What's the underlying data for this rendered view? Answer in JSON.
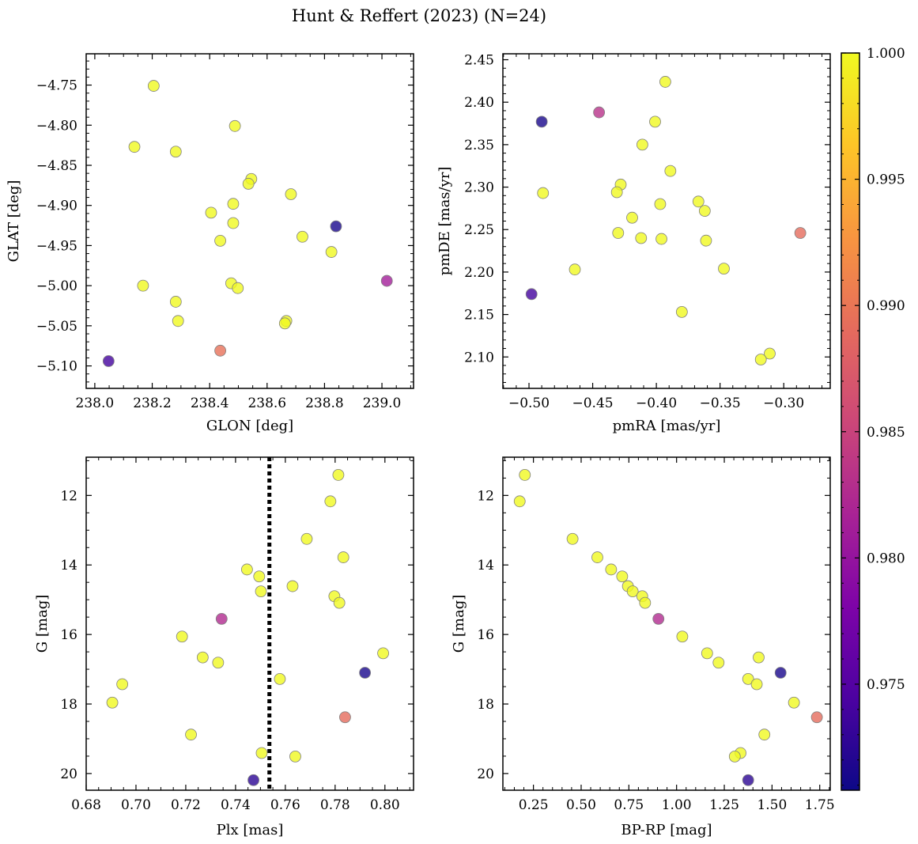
{
  "figure": {
    "title": "Hunt & Reffert (2023) (N=24)"
  },
  "colorbar": {
    "range": [
      0.9708,
      1.0
    ],
    "ticks": [
      0.975,
      0.98,
      0.985,
      0.99,
      0.995,
      1.0
    ],
    "tick_labels": [
      "0.975",
      "0.980",
      "0.985",
      "0.990",
      "0.995",
      "1.000"
    ],
    "colormap": "plasma"
  },
  "marker_style": {
    "edge_color": "#808080",
    "alpha": 0.8
  },
  "vline_color": "#000000",
  "chart_data": [
    {
      "type": "scatter",
      "xlabel": "GLON [deg]",
      "ylabel": "GLAT [deg]",
      "xlim": [
        237.97,
        239.11
      ],
      "ylim": [
        -5.128,
        -4.711
      ],
      "xticks": [
        238.0,
        238.2,
        238.4,
        238.6,
        238.8,
        239.0
      ],
      "xtick_labels": [
        "238.0",
        "238.2",
        "238.4",
        "238.6",
        "238.8",
        "239.0"
      ],
      "yticks": [
        -4.75,
        -4.8,
        -4.85,
        -4.9,
        -4.95,
        -5.0,
        -5.05,
        -5.1
      ],
      "ytick_labels": [
        "−4.75",
        "−4.80",
        "−4.85",
        "−4.90",
        "−4.95",
        "−5.00",
        "−5.05",
        "−5.10"
      ],
      "y_inverted": false,
      "points": [
        {
          "x": 238.205,
          "y": -4.751,
          "c": 1.0
        },
        {
          "x": 238.488,
          "y": -4.801,
          "c": 1.0
        },
        {
          "x": 238.138,
          "y": -4.827,
          "c": 1.0
        },
        {
          "x": 238.282,
          "y": -4.833,
          "c": 1.0
        },
        {
          "x": 238.545,
          "y": -4.867,
          "c": 1.0
        },
        {
          "x": 238.535,
          "y": -4.873,
          "c": 1.0
        },
        {
          "x": 238.683,
          "y": -4.886,
          "c": 1.0
        },
        {
          "x": 238.482,
          "y": -4.898,
          "c": 1.0
        },
        {
          "x": 238.405,
          "y": -4.909,
          "c": 1.0
        },
        {
          "x": 238.482,
          "y": -4.922,
          "c": 1.0
        },
        {
          "x": 238.84,
          "y": -4.926,
          "c": 0.9715
        },
        {
          "x": 238.723,
          "y": -4.939,
          "c": 1.0
        },
        {
          "x": 238.437,
          "y": -4.944,
          "c": 1.0
        },
        {
          "x": 238.824,
          "y": -4.958,
          "c": 1.0
        },
        {
          "x": 238.475,
          "y": -4.997,
          "c": 1.0
        },
        {
          "x": 239.017,
          "y": -4.994,
          "c": 0.9812
        },
        {
          "x": 238.168,
          "y": -5.0,
          "c": 1.0
        },
        {
          "x": 238.498,
          "y": -5.003,
          "c": 1.0
        },
        {
          "x": 238.282,
          "y": -5.02,
          "c": 1.0
        },
        {
          "x": 238.29,
          "y": -5.044,
          "c": 1.0
        },
        {
          "x": 238.667,
          "y": -5.044,
          "c": 1.0
        },
        {
          "x": 238.662,
          "y": -5.047,
          "c": 1.0
        },
        {
          "x": 238.437,
          "y": -5.081,
          "c": 0.9895
        },
        {
          "x": 238.048,
          "y": -5.094,
          "c": 0.974
        }
      ]
    },
    {
      "type": "scatter",
      "xlabel": "pmRA [mas/yr]",
      "ylabel": "pmDE [mas/yr]",
      "xlim": [
        -0.5205,
        -0.2635
      ],
      "ylim": [
        2.063,
        2.457
      ],
      "xticks": [
        -0.5,
        -0.45,
        -0.4,
        -0.35,
        -0.3
      ],
      "xtick_labels": [
        "−0.50",
        "−0.45",
        "−0.40",
        "−0.35",
        "−0.30"
      ],
      "yticks": [
        2.1,
        2.15,
        2.2,
        2.25,
        2.3,
        2.35,
        2.4,
        2.45
      ],
      "ytick_labels": [
        "2.10",
        "2.15",
        "2.20",
        "2.25",
        "2.30",
        "2.35",
        "2.40",
        "2.45"
      ],
      "y_inverted": false,
      "points": [
        {
          "x": -0.393,
          "y": 2.424,
          "c": 1.0
        },
        {
          "x": -0.445,
          "y": 2.388,
          "c": 0.9833
        },
        {
          "x": -0.49,
          "y": 2.377,
          "c": 0.9715
        },
        {
          "x": -0.401,
          "y": 2.377,
          "c": 1.0
        },
        {
          "x": -0.411,
          "y": 2.35,
          "c": 1.0
        },
        {
          "x": -0.389,
          "y": 2.319,
          "c": 1.0
        },
        {
          "x": -0.428,
          "y": 2.303,
          "c": 1.0
        },
        {
          "x": -0.431,
          "y": 2.294,
          "c": 1.0
        },
        {
          "x": -0.489,
          "y": 2.293,
          "c": 1.0
        },
        {
          "x": -0.367,
          "y": 2.283,
          "c": 1.0
        },
        {
          "x": -0.397,
          "y": 2.28,
          "c": 1.0
        },
        {
          "x": -0.362,
          "y": 2.272,
          "c": 1.0
        },
        {
          "x": -0.419,
          "y": 2.264,
          "c": 1.0
        },
        {
          "x": -0.287,
          "y": 2.246,
          "c": 0.989
        },
        {
          "x": -0.43,
          "y": 2.246,
          "c": 1.0
        },
        {
          "x": -0.412,
          "y": 2.24,
          "c": 1.0
        },
        {
          "x": -0.396,
          "y": 2.239,
          "c": 1.0
        },
        {
          "x": -0.361,
          "y": 2.237,
          "c": 1.0
        },
        {
          "x": -0.347,
          "y": 2.204,
          "c": 1.0
        },
        {
          "x": -0.464,
          "y": 2.203,
          "c": 1.0
        },
        {
          "x": -0.498,
          "y": 2.174,
          "c": 0.974
        },
        {
          "x": -0.38,
          "y": 2.153,
          "c": 1.0
        },
        {
          "x": -0.311,
          "y": 2.104,
          "c": 1.0
        },
        {
          "x": -0.318,
          "y": 2.097,
          "c": 1.0
        }
      ]
    },
    {
      "type": "scatter",
      "xlabel": "Plx [mas]",
      "ylabel": "G [mag]",
      "xlim": [
        0.68,
        0.8115
      ],
      "ylim": [
        20.48,
        10.9
      ],
      "xticks": [
        0.68,
        0.7,
        0.72,
        0.74,
        0.76,
        0.78,
        0.8
      ],
      "xtick_labels": [
        "0.68",
        "0.70",
        "0.72",
        "0.74",
        "0.76",
        "0.78",
        "0.80"
      ],
      "yticks": [
        12,
        14,
        16,
        18,
        20
      ],
      "ytick_labels": [
        "12",
        "14",
        "16",
        "18",
        "20"
      ],
      "y_inverted": true,
      "vline": 0.7536,
      "points": [
        {
          "x": 0.7813,
          "y": 11.41,
          "c": 1.0
        },
        {
          "x": 0.7781,
          "y": 12.17,
          "c": 1.0
        },
        {
          "x": 0.7686,
          "y": 13.25,
          "c": 1.0
        },
        {
          "x": 0.7833,
          "y": 13.78,
          "c": 1.0
        },
        {
          "x": 0.7446,
          "y": 14.13,
          "c": 1.0
        },
        {
          "x": 0.7495,
          "y": 14.33,
          "c": 1.0
        },
        {
          "x": 0.7629,
          "y": 14.61,
          "c": 1.0
        },
        {
          "x": 0.7502,
          "y": 14.76,
          "c": 1.0
        },
        {
          "x": 0.7797,
          "y": 14.9,
          "c": 1.0
        },
        {
          "x": 0.7817,
          "y": 15.09,
          "c": 1.0
        },
        {
          "x": 0.7344,
          "y": 15.55,
          "c": 0.9825
        },
        {
          "x": 0.7185,
          "y": 16.06,
          "c": 1.0
        },
        {
          "x": 0.7993,
          "y": 16.54,
          "c": 1.0
        },
        {
          "x": 0.7268,
          "y": 16.66,
          "c": 1.0
        },
        {
          "x": 0.733,
          "y": 16.81,
          "c": 1.0
        },
        {
          "x": 0.792,
          "y": 17.1,
          "c": 0.9715
        },
        {
          "x": 0.7578,
          "y": 17.28,
          "c": 1.0
        },
        {
          "x": 0.6945,
          "y": 17.43,
          "c": 1.0
        },
        {
          "x": 0.6905,
          "y": 17.96,
          "c": 1.0
        },
        {
          "x": 0.784,
          "y": 18.38,
          "c": 0.989
        },
        {
          "x": 0.7221,
          "y": 18.88,
          "c": 1.0
        },
        {
          "x": 0.7505,
          "y": 19.41,
          "c": 1.0
        },
        {
          "x": 0.764,
          "y": 19.51,
          "c": 1.0
        },
        {
          "x": 0.7472,
          "y": 20.19,
          "c": 0.9725
        }
      ]
    },
    {
      "type": "scatter",
      "xlabel": "BP-RP [mag]",
      "ylabel": "G [mag]",
      "xlim": [
        0.09,
        1.805
      ],
      "ylim": [
        20.48,
        10.9
      ],
      "xticks": [
        0.25,
        0.5,
        0.75,
        1.0,
        1.25,
        1.5,
        1.75
      ],
      "xtick_labels": [
        "0.25",
        "0.50",
        "0.75",
        "1.00",
        "1.25",
        "1.50",
        "1.75"
      ],
      "yticks": [
        12,
        14,
        16,
        18,
        20
      ],
      "ytick_labels": [
        "12",
        "14",
        "16",
        "18",
        "20"
      ],
      "y_inverted": true,
      "points": [
        {
          "x": 0.205,
          "y": 11.41,
          "c": 1.0
        },
        {
          "x": 0.178,
          "y": 12.17,
          "c": 1.0
        },
        {
          "x": 0.455,
          "y": 13.25,
          "c": 1.0
        },
        {
          "x": 0.585,
          "y": 13.78,
          "c": 1.0
        },
        {
          "x": 0.657,
          "y": 14.13,
          "c": 1.0
        },
        {
          "x": 0.715,
          "y": 14.33,
          "c": 1.0
        },
        {
          "x": 0.745,
          "y": 14.61,
          "c": 1.0
        },
        {
          "x": 0.77,
          "y": 14.76,
          "c": 1.0
        },
        {
          "x": 0.82,
          "y": 14.9,
          "c": 1.0
        },
        {
          "x": 0.835,
          "y": 15.09,
          "c": 1.0
        },
        {
          "x": 0.905,
          "y": 15.55,
          "c": 0.9825
        },
        {
          "x": 1.03,
          "y": 16.06,
          "c": 1.0
        },
        {
          "x": 1.16,
          "y": 16.54,
          "c": 1.0
        },
        {
          "x": 1.43,
          "y": 16.66,
          "c": 1.0
        },
        {
          "x": 1.22,
          "y": 16.81,
          "c": 1.0
        },
        {
          "x": 1.545,
          "y": 17.1,
          "c": 0.9715
        },
        {
          "x": 1.375,
          "y": 17.28,
          "c": 1.0
        },
        {
          "x": 1.42,
          "y": 17.43,
          "c": 1.0
        },
        {
          "x": 1.615,
          "y": 17.96,
          "c": 1.0
        },
        {
          "x": 1.735,
          "y": 18.38,
          "c": 0.989
        },
        {
          "x": 1.46,
          "y": 18.88,
          "c": 1.0
        },
        {
          "x": 1.335,
          "y": 19.41,
          "c": 1.0
        },
        {
          "x": 1.305,
          "y": 19.51,
          "c": 1.0
        },
        {
          "x": 1.375,
          "y": 20.19,
          "c": 0.9725
        }
      ]
    }
  ]
}
